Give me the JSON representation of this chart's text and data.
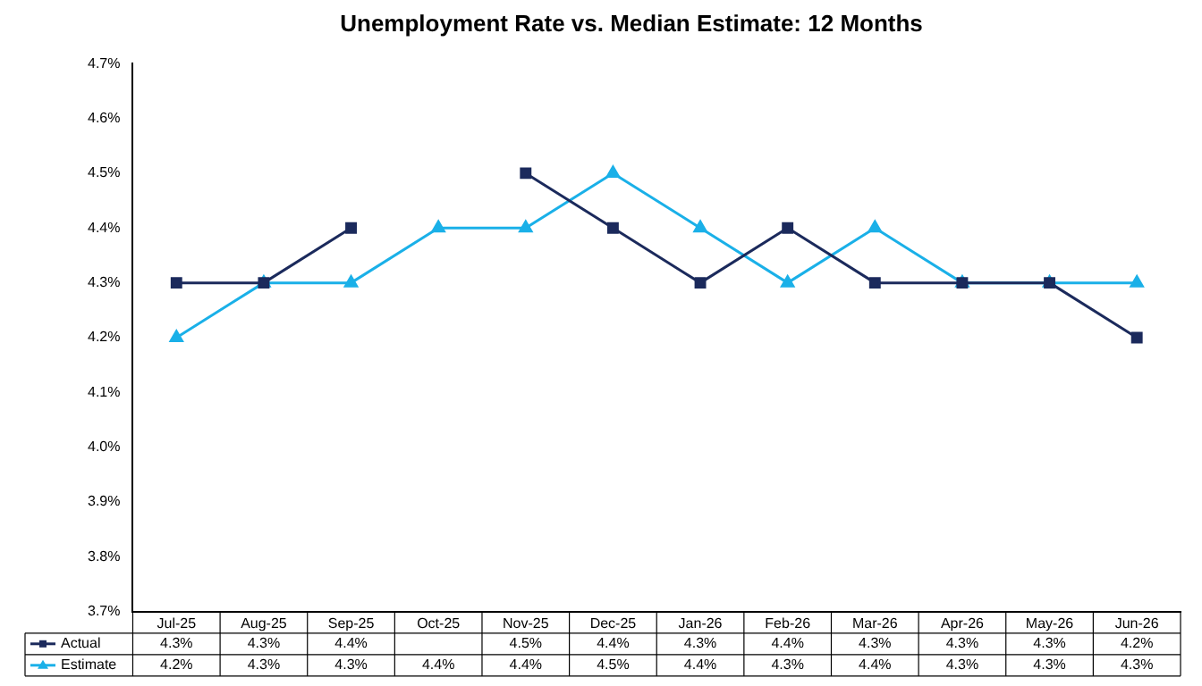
{
  "chart_data": {
    "type": "line",
    "title": "Unemployment Rate vs. Median Estimate: 12 Months",
    "categories": [
      "Jul-25",
      "Aug-25",
      "Sep-25",
      "Oct-25",
      "Nov-25",
      "Dec-25",
      "Jan-26",
      "Feb-26",
      "Mar-26",
      "Apr-26",
      "May-26",
      "Jun-26"
    ],
    "series": [
      {
        "name": "Actual",
        "color": "#1b2a5c",
        "marker": "square",
        "values": [
          4.3,
          4.3,
          4.4,
          null,
          4.5,
          4.4,
          4.3,
          4.4,
          4.3,
          4.3,
          4.3,
          4.2
        ],
        "value_labels": [
          "4.3%",
          "4.3%",
          "4.4%",
          null,
          "4.5%",
          "4.4%",
          "4.3%",
          "4.4%",
          "4.3%",
          "4.3%",
          "4.3%",
          "4.2%"
        ]
      },
      {
        "name": "Estimate",
        "color": "#1ab0e8",
        "marker": "triangle",
        "values": [
          4.2,
          4.3,
          4.3,
          4.4,
          4.4,
          4.5,
          4.4,
          4.3,
          4.4,
          4.3,
          4.3,
          4.3
        ],
        "value_labels": [
          "4.2%",
          "4.3%",
          "4.3%",
          "4.4%",
          "4.4%",
          "4.5%",
          "4.4%",
          "4.3%",
          "4.4%",
          "4.3%",
          "4.3%",
          "4.3%"
        ]
      }
    ],
    "ylim": [
      3.7,
      4.7
    ],
    "yticks": [
      {
        "value": 3.7,
        "label": "3.7%"
      },
      {
        "value": 3.8,
        "label": "3.8%"
      },
      {
        "value": 3.9,
        "label": "3.9%"
      },
      {
        "value": 4.0,
        "label": "4.0%"
      },
      {
        "value": 4.1,
        "label": "4.1%"
      },
      {
        "value": 4.2,
        "label": "4.2%"
      },
      {
        "value": 4.3,
        "label": "4.3%"
      },
      {
        "value": 4.4,
        "label": "4.4%"
      },
      {
        "value": 4.5,
        "label": "4.5%"
      },
      {
        "value": 4.6,
        "label": "4.6%"
      },
      {
        "value": 4.7,
        "label": "4.7%"
      }
    ],
    "legend": "bottom",
    "grid": false,
    "line_style": "solid"
  }
}
